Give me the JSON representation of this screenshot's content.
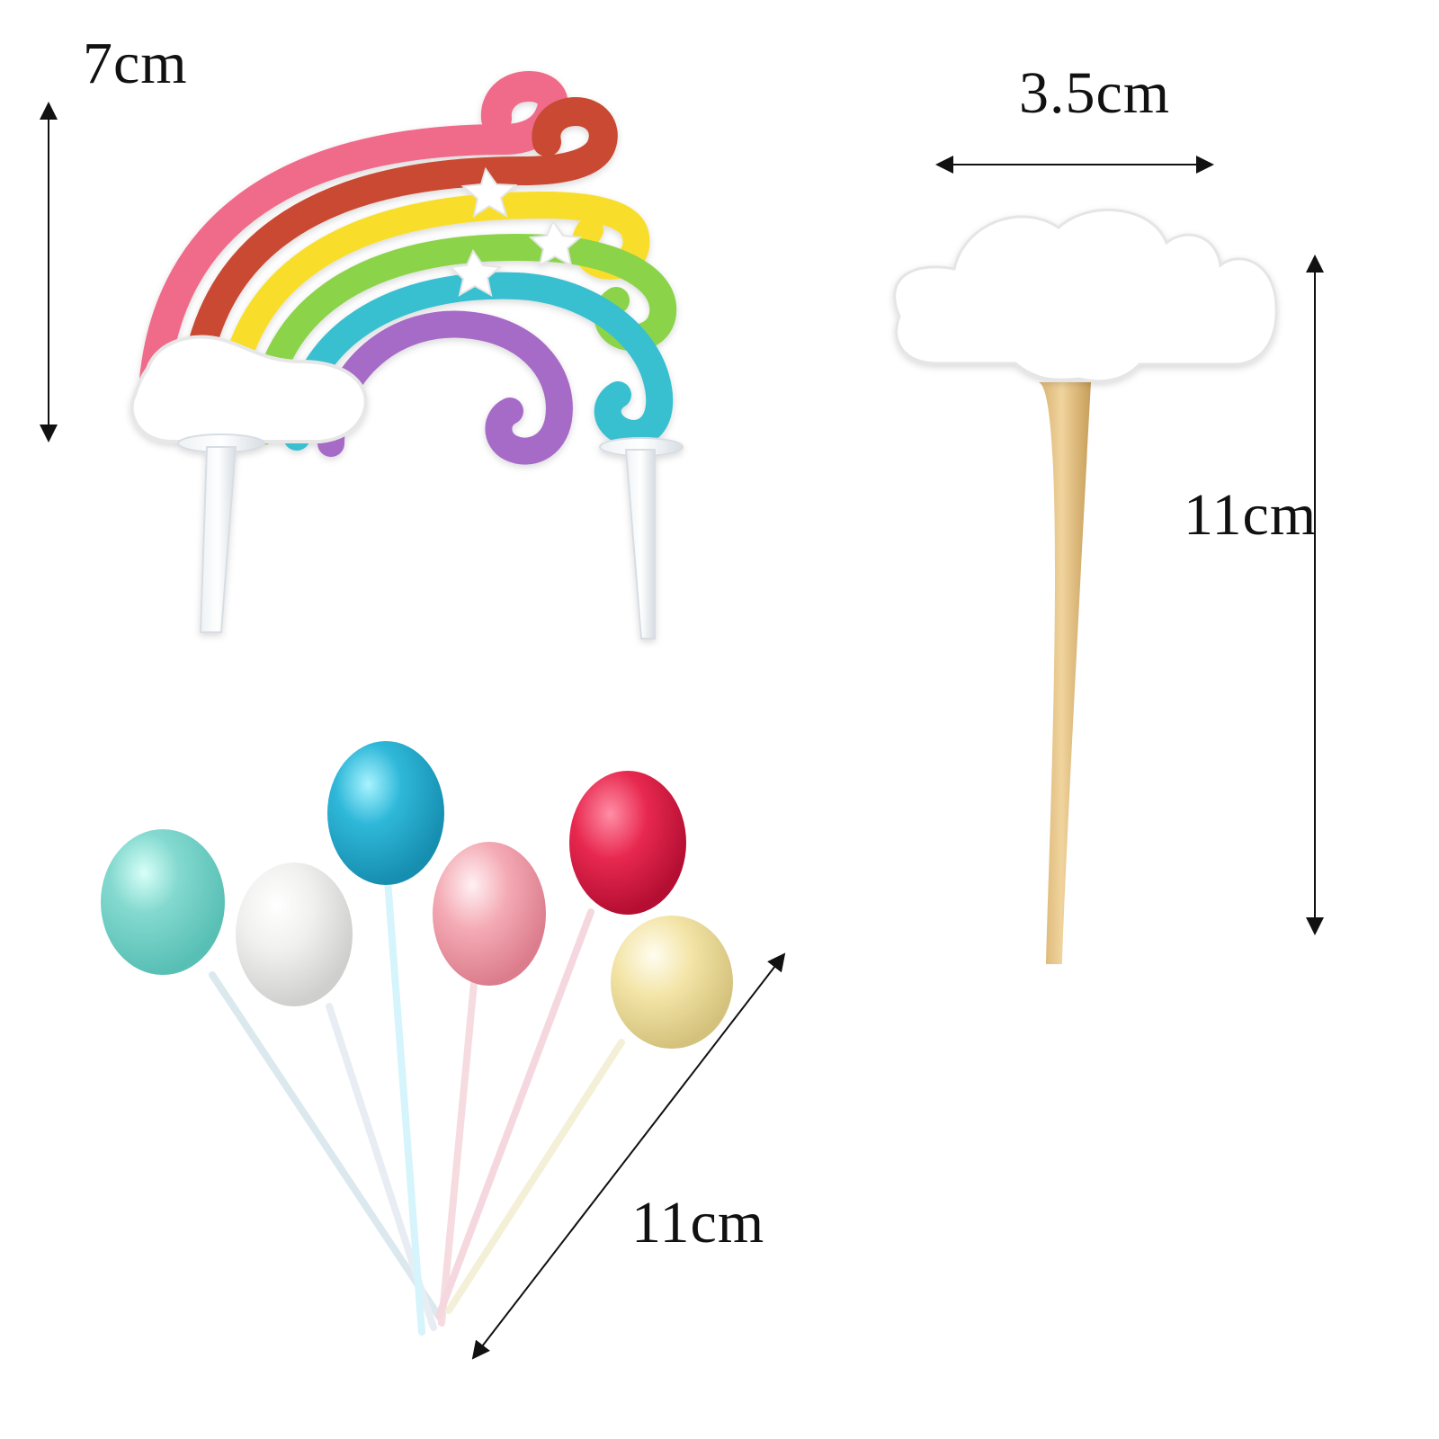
{
  "labels": {
    "rainbow_height": "7cm",
    "cloud_width": "3.5cm",
    "cloud_height": "11cm",
    "balloon_length": "11cm"
  },
  "colors": {
    "rainbow": [
      "#f06b8a",
      "#c94a32",
      "#f8de2a",
      "#8bd34a",
      "#39bfd0",
      "#a66bc7"
    ],
    "balloons": {
      "mint": "#83d9cf",
      "white": "#f0f0ef",
      "blue": "#2fb8d9",
      "pink": "#f4aab4",
      "red": "#e8284f",
      "yellow": "#f3e4a6"
    },
    "cloud": "#ffffff",
    "stick": "#e8c88d",
    "arrow": "#111111"
  },
  "icons": {
    "rainbow": "rainbow-cake-topper-icon",
    "cloud": "cloud-cake-topper-icon",
    "balloons": "balloon-cake-toppers-icon",
    "arrow": "dimension-arrow-icon"
  }
}
